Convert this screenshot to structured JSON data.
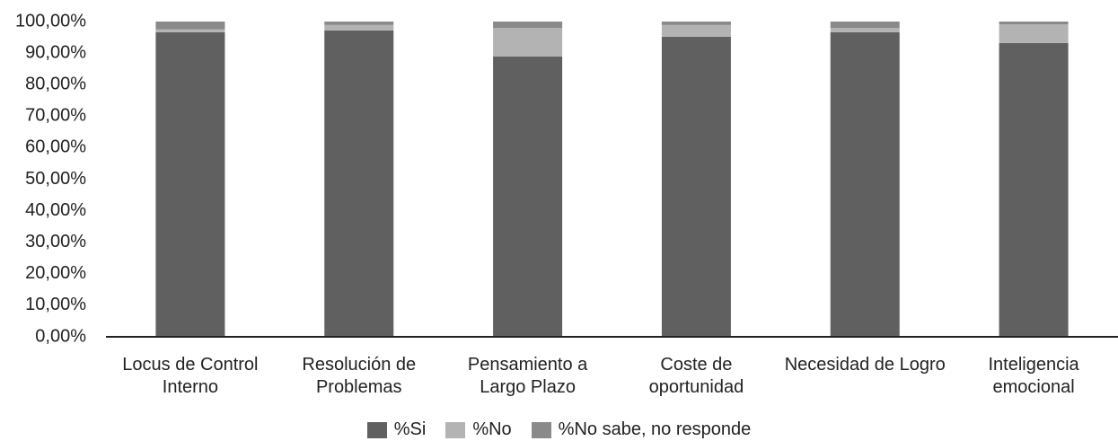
{
  "chart_data": {
    "type": "stacked_bar",
    "categories": [
      "Locus de Control Interno",
      "Resolución de Problemas",
      "Pensamiento a Largo Plazo",
      "Coste de oportunidad",
      "Necesidad de Logro",
      "Inteligencia emocional"
    ],
    "series": [
      {
        "name": "%Si",
        "color": "#606060",
        "values": [
          96.6,
          97.2,
          88.9,
          95.2,
          96.6,
          93.2
        ]
      },
      {
        "name": "%No",
        "color": "#b3b3b3",
        "values": [
          0.9,
          1.7,
          9.1,
          3.7,
          1.4,
          5.9
        ]
      },
      {
        "name": "%No sabe, no responde",
        "color": "#8a8a8a",
        "values": [
          2.5,
          1.1,
          2.0,
          1.1,
          2.0,
          0.9
        ]
      }
    ],
    "ylim": [
      0,
      100
    ],
    "yticks": [
      {
        "value": 0,
        "label": "0,00%"
      },
      {
        "value": 10,
        "label": "10,00%"
      },
      {
        "value": 20,
        "label": "20,00%"
      },
      {
        "value": 30,
        "label": "30,00%"
      },
      {
        "value": 40,
        "label": "40,00%"
      },
      {
        "value": 50,
        "label": "50,00%"
      },
      {
        "value": 60,
        "label": "60,00%"
      },
      {
        "value": 70,
        "label": "70,00%"
      },
      {
        "value": 80,
        "label": "80,00%"
      },
      {
        "value": 90,
        "label": "90,00%"
      },
      {
        "value": 100,
        "label": "100,00%"
      }
    ],
    "legend": "bottom",
    "grid": false
  }
}
